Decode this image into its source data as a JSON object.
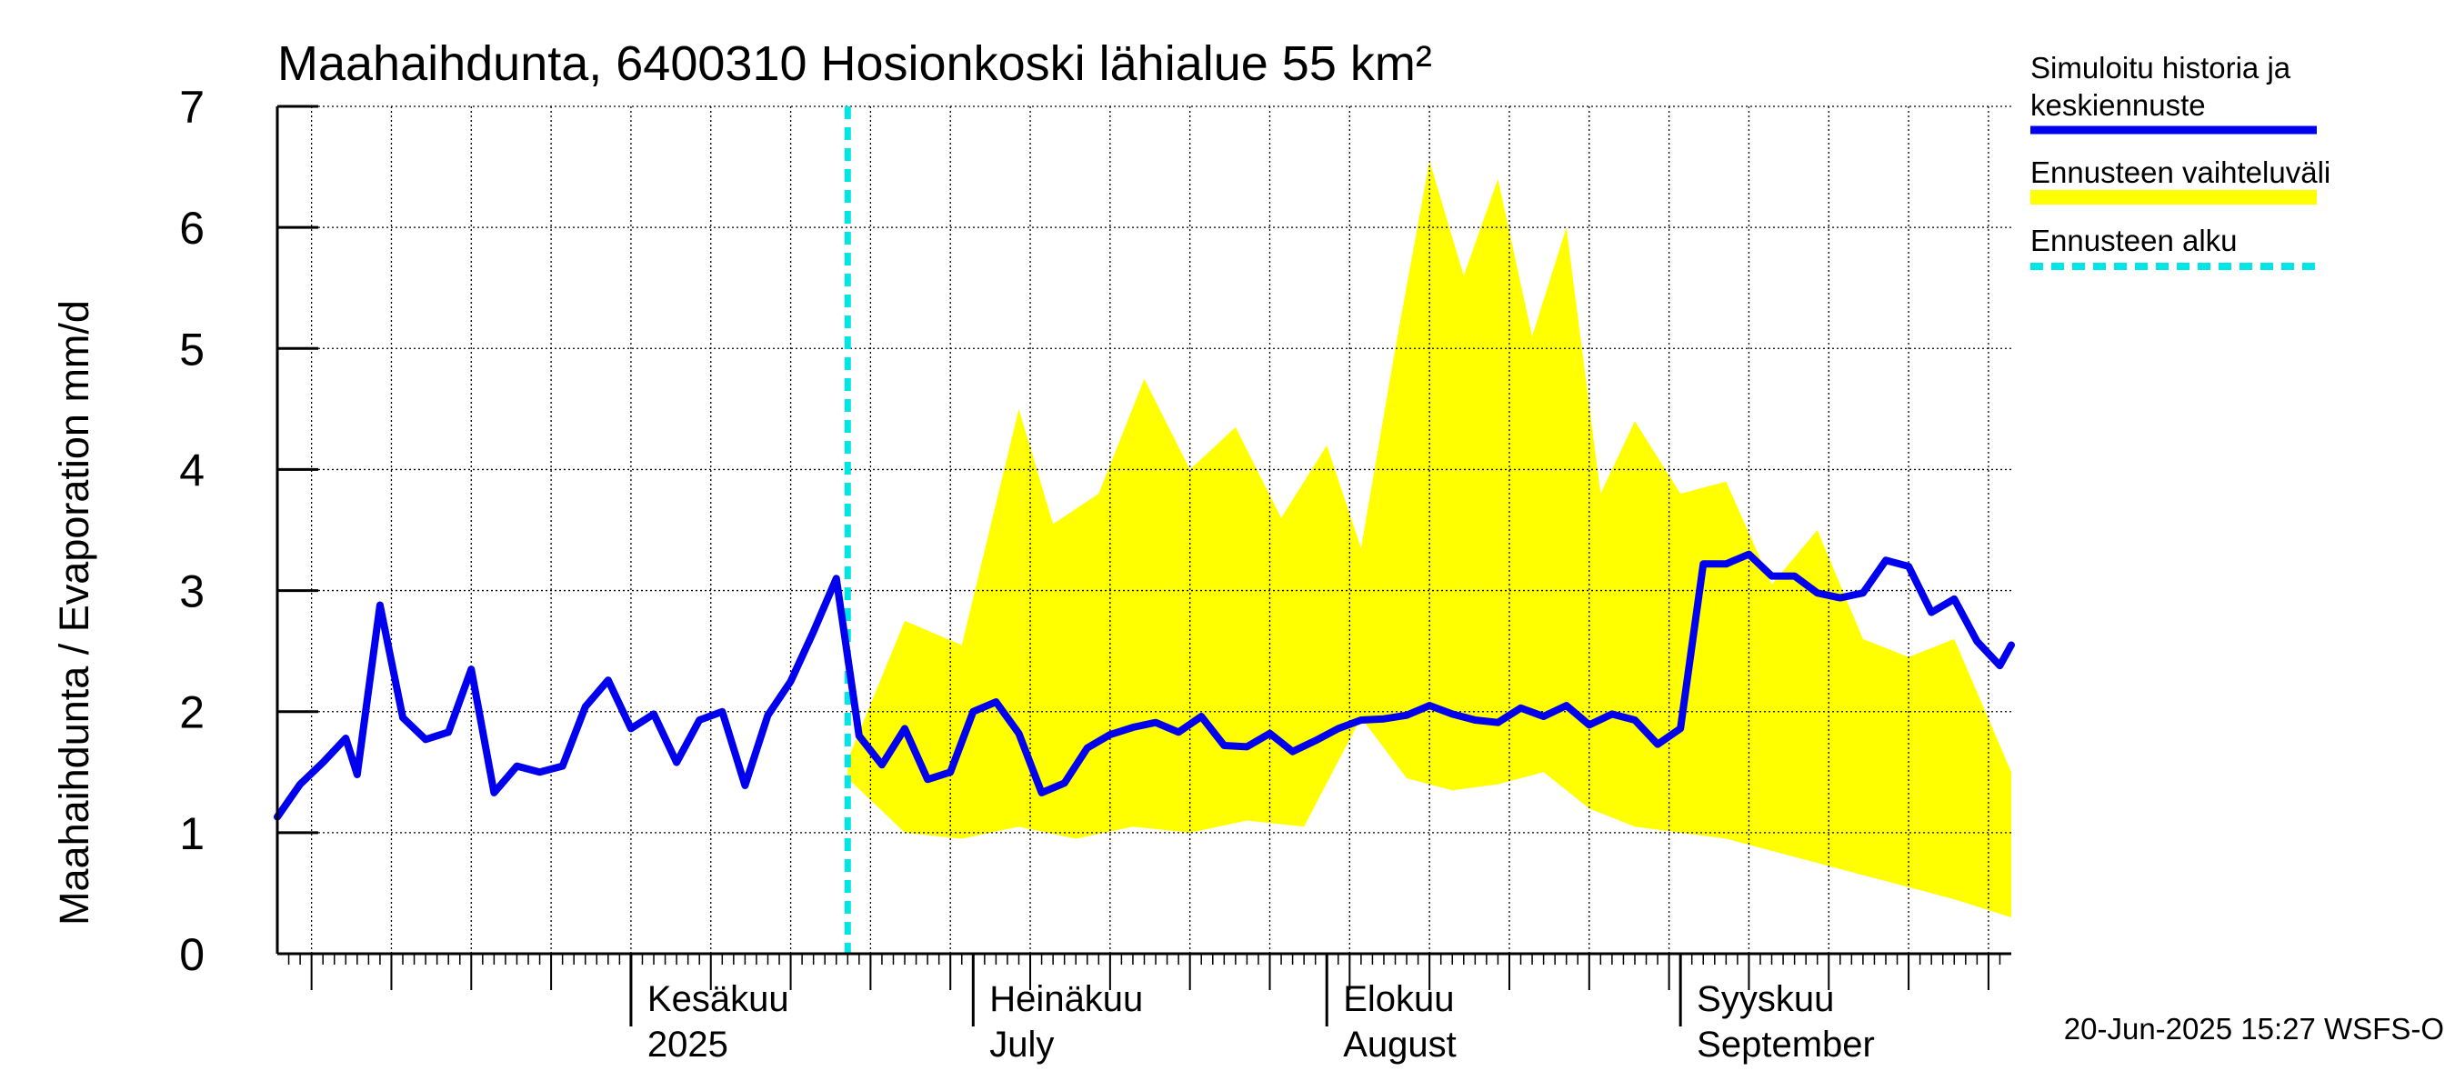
{
  "chart_data": {
    "type": "line",
    "title": "Maahaihdunta, 6400310 Hosionkoski lähialue 55 km²",
    "ylabel": "Maahaihdunta / Evaporation   mm/d",
    "ylim": [
      0,
      7
    ],
    "yticks": [
      "0",
      "1",
      "2",
      "3",
      "4",
      "5",
      "6",
      "7"
    ],
    "grid": true,
    "legend_position": "right",
    "x_start_date": "2025-05-01",
    "x_end_date": "2025-09-30",
    "forecast_start_date": "2025-06-20",
    "month_labels": [
      {
        "date": "2025-06-01",
        "line1": "Kesäkuu",
        "line2": "2025"
      },
      {
        "date": "2025-07-01",
        "line1": "Heinäkuu",
        "line2": "July"
      },
      {
        "date": "2025-08-01",
        "line1": "Elokuu",
        "line2": "August"
      },
      {
        "date": "2025-09-01",
        "line1": "Syyskuu",
        "line2": "September"
      }
    ],
    "series": [
      {
        "name": "Simuloitu historia ja keskiennuste",
        "color": "#0000ee",
        "points": [
          [
            "2025-05-01",
            1.13
          ],
          [
            "2025-05-03",
            1.4
          ],
          [
            "2025-05-05",
            1.58
          ],
          [
            "2025-05-07",
            1.78
          ],
          [
            "2025-05-08",
            1.48
          ],
          [
            "2025-05-10",
            2.88
          ],
          [
            "2025-05-12",
            1.95
          ],
          [
            "2025-05-14",
            1.77
          ],
          [
            "2025-05-16",
            1.83
          ],
          [
            "2025-05-18",
            2.35
          ],
          [
            "2025-05-20",
            1.33
          ],
          [
            "2025-05-22",
            1.55
          ],
          [
            "2025-05-24",
            1.5
          ],
          [
            "2025-05-26",
            1.55
          ],
          [
            "2025-05-28",
            2.04
          ],
          [
            "2025-05-30",
            2.26
          ],
          [
            "2025-06-01",
            1.86
          ],
          [
            "2025-06-03",
            1.98
          ],
          [
            "2025-06-05",
            1.58
          ],
          [
            "2025-06-07",
            1.93
          ],
          [
            "2025-06-09",
            2.0
          ],
          [
            "2025-06-11",
            1.39
          ],
          [
            "2025-06-13",
            1.97
          ],
          [
            "2025-06-15",
            2.25
          ],
          [
            "2025-06-17",
            2.66
          ],
          [
            "2025-06-19",
            3.1
          ],
          [
            "2025-06-21",
            1.8
          ],
          [
            "2025-06-23",
            1.56
          ],
          [
            "2025-06-25",
            1.86
          ],
          [
            "2025-06-27",
            1.44
          ],
          [
            "2025-06-29",
            1.5
          ],
          [
            "2025-07-01",
            2.0
          ],
          [
            "2025-07-03",
            2.08
          ],
          [
            "2025-07-05",
            1.82
          ],
          [
            "2025-07-07",
            1.33
          ],
          [
            "2025-07-09",
            1.41
          ],
          [
            "2025-07-11",
            1.7
          ],
          [
            "2025-07-13",
            1.81
          ],
          [
            "2025-07-15",
            1.87
          ],
          [
            "2025-07-17",
            1.91
          ],
          [
            "2025-07-19",
            1.83
          ],
          [
            "2025-07-21",
            1.96
          ],
          [
            "2025-07-23",
            1.72
          ],
          [
            "2025-07-25",
            1.71
          ],
          [
            "2025-07-27",
            1.82
          ],
          [
            "2025-07-29",
            1.67
          ],
          [
            "2025-07-31",
            1.76
          ],
          [
            "2025-08-02",
            1.86
          ],
          [
            "2025-08-04",
            1.93
          ],
          [
            "2025-08-06",
            1.94
          ],
          [
            "2025-08-08",
            1.97
          ],
          [
            "2025-08-10",
            2.05
          ],
          [
            "2025-08-12",
            1.98
          ],
          [
            "2025-08-14",
            1.93
          ],
          [
            "2025-08-16",
            1.91
          ],
          [
            "2025-08-18",
            2.03
          ],
          [
            "2025-08-20",
            1.96
          ],
          [
            "2025-08-22",
            2.05
          ],
          [
            "2025-08-24",
            1.89
          ],
          [
            "2025-08-26",
            1.98
          ],
          [
            "2025-08-28",
            1.93
          ],
          [
            "2025-08-30",
            1.73
          ],
          [
            "2025-09-01",
            1.86
          ],
          [
            "2025-09-03",
            3.22
          ],
          [
            "2025-09-05",
            3.22
          ],
          [
            "2025-09-07",
            3.3
          ],
          [
            "2025-09-09",
            3.12
          ],
          [
            "2025-09-11",
            3.12
          ],
          [
            "2025-09-13",
            2.98
          ],
          [
            "2025-09-15",
            2.94
          ],
          [
            "2025-09-17",
            2.98
          ],
          [
            "2025-09-19",
            3.25
          ],
          [
            "2025-09-21",
            3.2
          ],
          [
            "2025-09-23",
            2.82
          ],
          [
            "2025-09-25",
            2.93
          ],
          [
            "2025-09-27",
            2.58
          ],
          [
            "2025-09-29",
            2.38
          ],
          [
            "2025-09-30",
            2.55
          ]
        ]
      },
      {
        "name": "Ennusteen vaihteluväli",
        "color": "#ffff00",
        "upper": [
          [
            "2025-06-20",
            1.6
          ],
          [
            "2025-06-25",
            2.75
          ],
          [
            "2025-06-30",
            2.55
          ],
          [
            "2025-07-05",
            4.5
          ],
          [
            "2025-07-08",
            3.55
          ],
          [
            "2025-07-12",
            3.8
          ],
          [
            "2025-07-16",
            4.75
          ],
          [
            "2025-07-20",
            4.0
          ],
          [
            "2025-07-24",
            4.35
          ],
          [
            "2025-07-28",
            3.6
          ],
          [
            "2025-08-01",
            4.2
          ],
          [
            "2025-08-04",
            3.35
          ],
          [
            "2025-08-07",
            5.0
          ],
          [
            "2025-08-10",
            6.55
          ],
          [
            "2025-08-13",
            5.6
          ],
          [
            "2025-08-16",
            6.4
          ],
          [
            "2025-08-19",
            5.1
          ],
          [
            "2025-08-22",
            6.0
          ],
          [
            "2025-08-25",
            3.8
          ],
          [
            "2025-08-28",
            4.4
          ],
          [
            "2025-09-01",
            3.8
          ],
          [
            "2025-09-05",
            3.9
          ],
          [
            "2025-09-09",
            3.05
          ],
          [
            "2025-09-13",
            3.5
          ],
          [
            "2025-09-17",
            2.6
          ],
          [
            "2025-09-21",
            2.45
          ],
          [
            "2025-09-25",
            2.6
          ],
          [
            "2025-09-30",
            1.5
          ]
        ],
        "lower": [
          [
            "2025-06-20",
            1.45
          ],
          [
            "2025-06-25",
            1.0
          ],
          [
            "2025-06-30",
            0.95
          ],
          [
            "2025-07-05",
            1.05
          ],
          [
            "2025-07-10",
            0.95
          ],
          [
            "2025-07-15",
            1.05
          ],
          [
            "2025-07-20",
            1.0
          ],
          [
            "2025-07-25",
            1.1
          ],
          [
            "2025-07-30",
            1.05
          ],
          [
            "2025-08-04",
            1.95
          ],
          [
            "2025-08-08",
            1.45
          ],
          [
            "2025-08-12",
            1.35
          ],
          [
            "2025-08-16",
            1.4
          ],
          [
            "2025-08-20",
            1.5
          ],
          [
            "2025-08-24",
            1.2
          ],
          [
            "2025-08-28",
            1.05
          ],
          [
            "2025-09-01",
            1.0
          ],
          [
            "2025-09-05",
            0.95
          ],
          [
            "2025-09-09",
            0.85
          ],
          [
            "2025-09-13",
            0.75
          ],
          [
            "2025-09-17",
            0.65
          ],
          [
            "2025-09-21",
            0.55
          ],
          [
            "2025-09-25",
            0.45
          ],
          [
            "2025-09-30",
            0.3
          ]
        ]
      },
      {
        "name": "Ennusteen alku",
        "color": "#00e5e5",
        "date": "2025-06-20"
      }
    ],
    "legend": [
      {
        "line1": "Simuloitu historia ja",
        "line2": "keskiennuste",
        "color": "#0000ee",
        "style": "solid"
      },
      {
        "line1": "Ennusteen vaihteluväli",
        "line2": "",
        "color": "#ffff00",
        "style": "band"
      },
      {
        "line1": "Ennusteen alku",
        "line2": "",
        "color": "#00e5e5",
        "style": "dashed"
      }
    ],
    "footer": "20-Jun-2025 15:27 WSFS-O"
  }
}
